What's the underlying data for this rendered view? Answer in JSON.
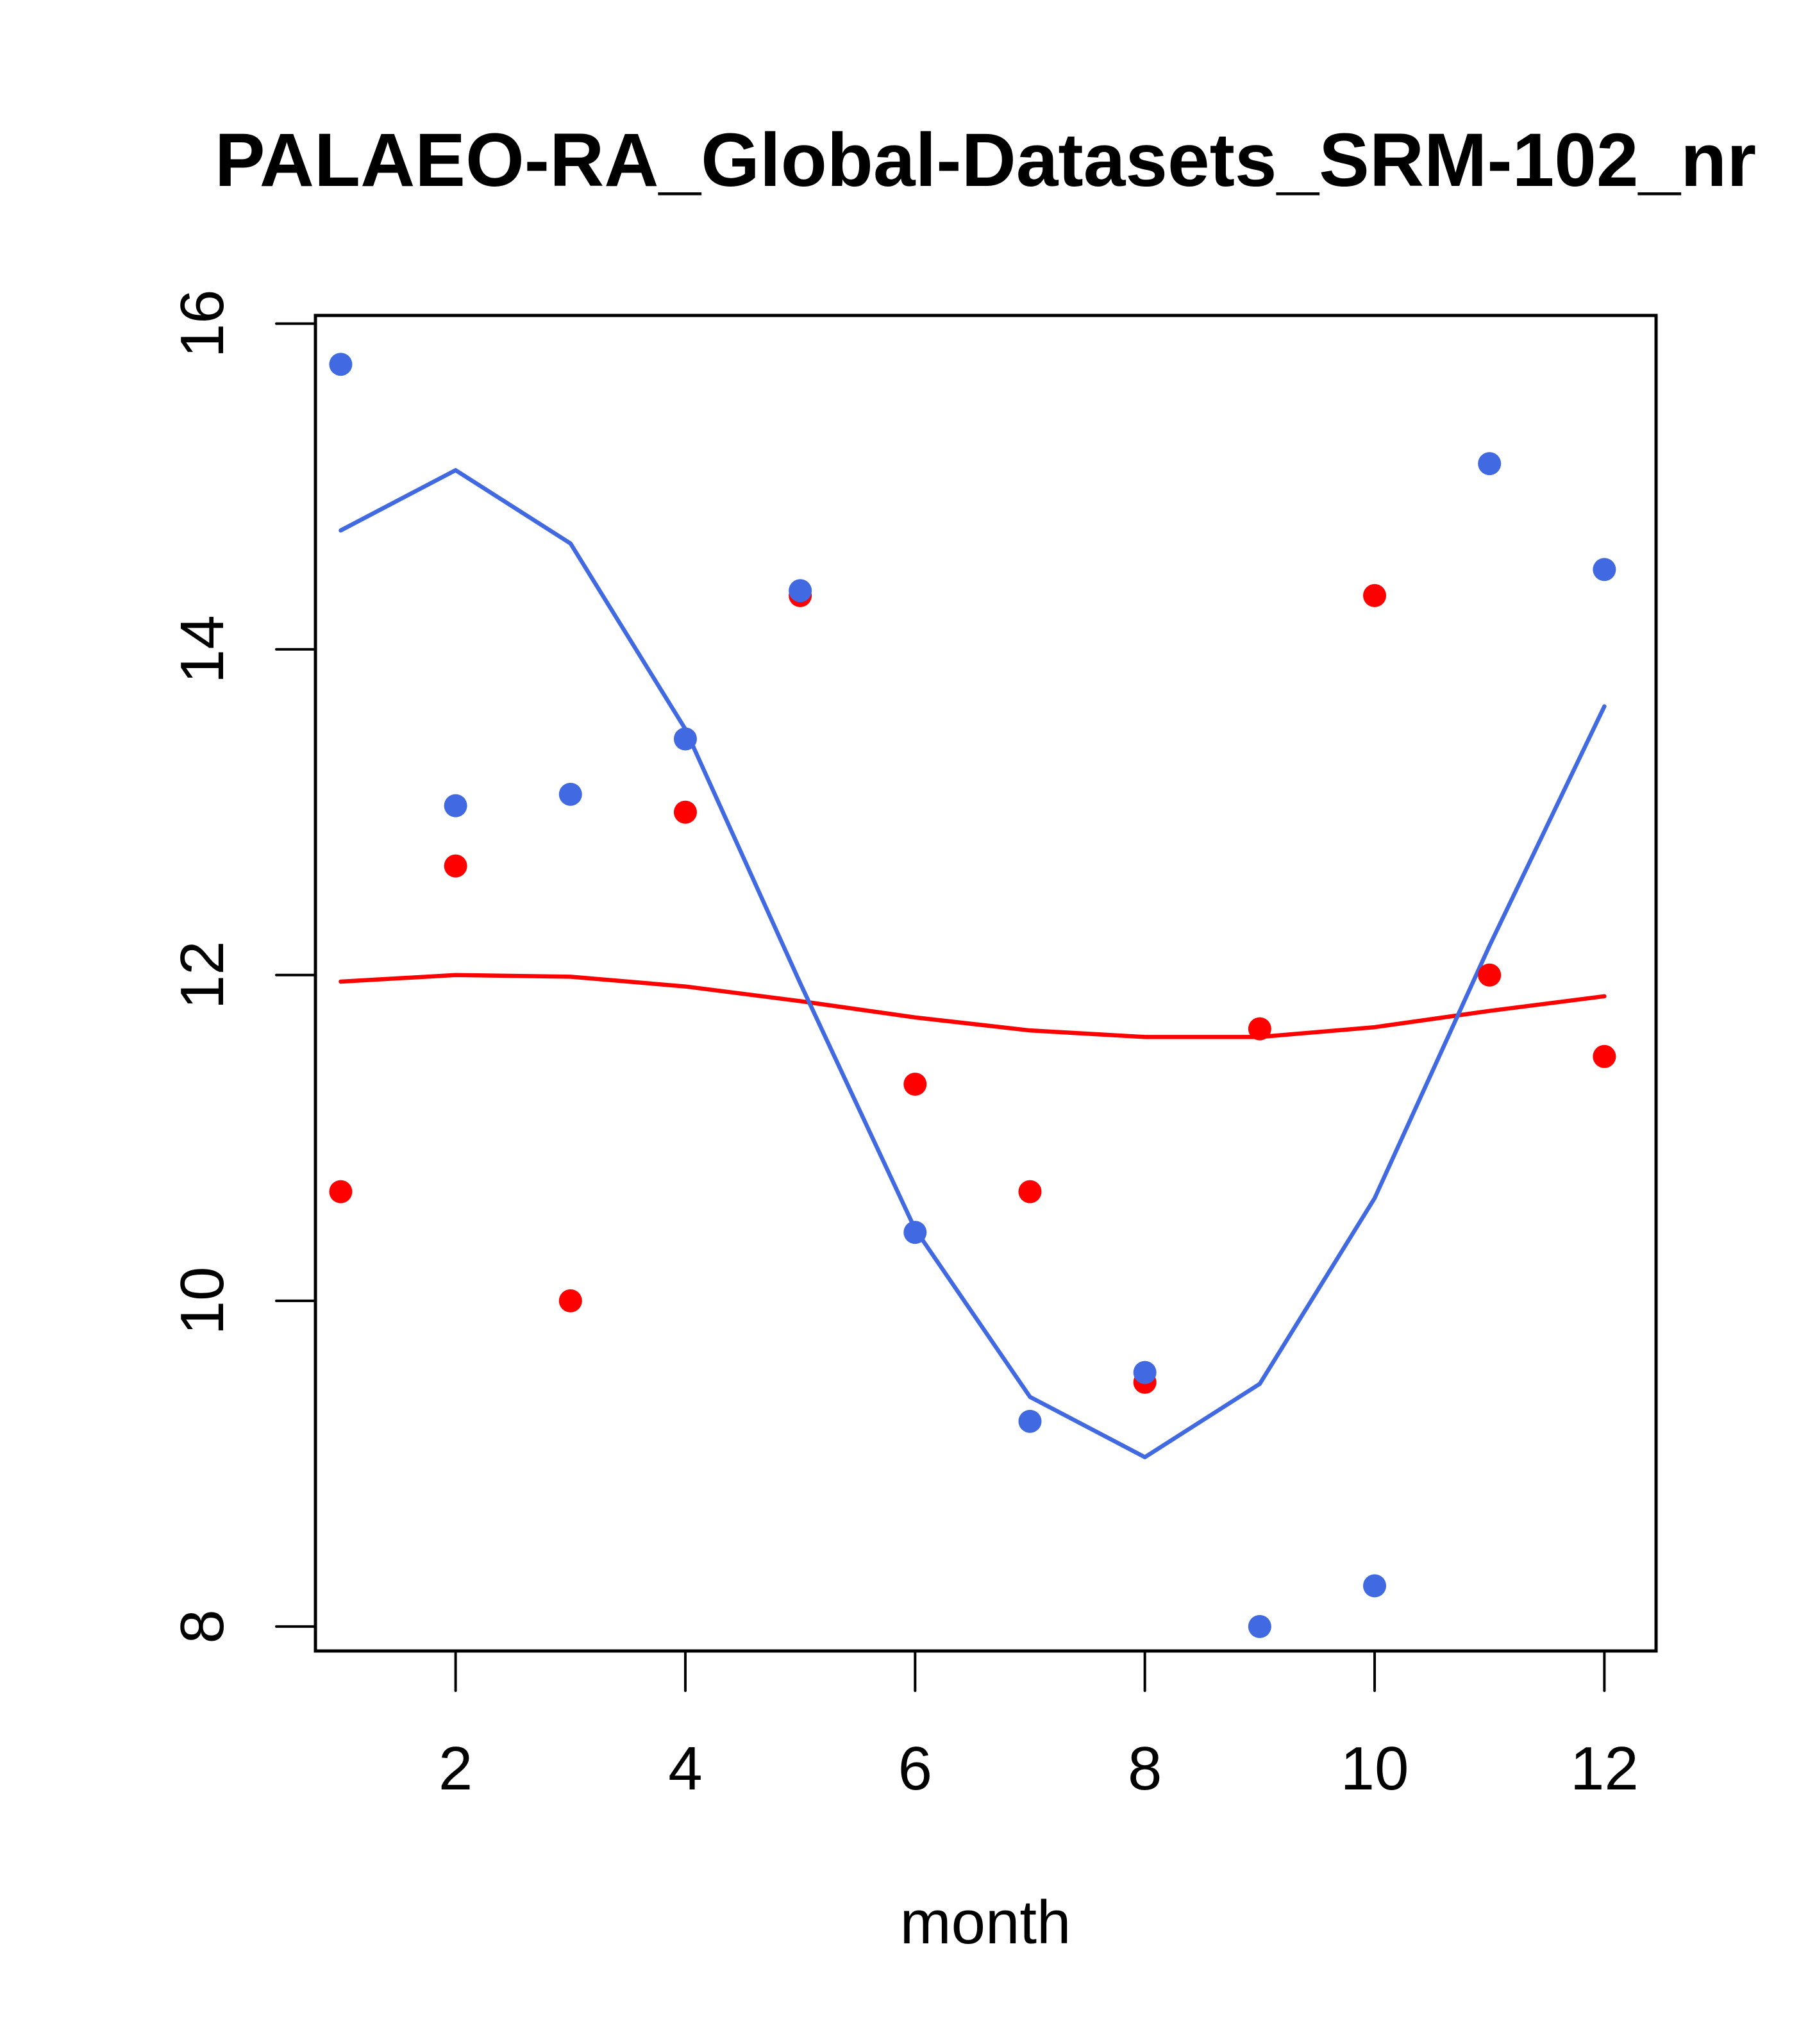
{
  "chart_data": {
    "type": "scatter",
    "title": "PALAEO-RA_Global-Datasets_SRM-102_nr",
    "xlabel": "month",
    "ylabel": "",
    "xlim": [
      0.78,
      12.45
    ],
    "ylim": [
      7.85,
      16.05
    ],
    "x_ticks": [
      2,
      4,
      6,
      8,
      10,
      12
    ],
    "y_ticks": [
      8,
      10,
      12,
      14,
      16
    ],
    "x_tick_labels": [
      "2",
      "4",
      "6",
      "8",
      "10",
      "12"
    ],
    "y_tick_labels": [
      "8",
      "10",
      "12",
      "14",
      "16"
    ],
    "grid": false,
    "legend": null,
    "x": [
      1,
      2,
      3,
      4,
      5,
      6,
      7,
      8,
      9,
      10,
      11,
      12
    ],
    "series": [
      {
        "name": "red points",
        "kind": "points",
        "color": "#ff0000",
        "values": [
          10.67,
          12.67,
          10.0,
          13.0,
          14.33,
          11.33,
          10.67,
          9.5,
          11.67,
          14.33,
          12.0,
          11.5
        ]
      },
      {
        "name": "blue points",
        "kind": "points",
        "color": "#4169e1",
        "values": [
          15.75,
          13.04,
          13.11,
          13.45,
          14.36,
          10.42,
          9.26,
          9.56,
          8.0,
          8.25,
          15.14,
          14.49
        ]
      },
      {
        "name": "red line",
        "kind": "line",
        "color": "#ff0000",
        "values": [
          11.96,
          12.0,
          11.99,
          11.93,
          11.84,
          11.74,
          11.66,
          11.62,
          11.62,
          11.68,
          11.78,
          11.87
        ]
      },
      {
        "name": "blue line",
        "kind": "line",
        "color": "#4169e1",
        "values": [
          14.73,
          15.1,
          14.65,
          13.51,
          11.95,
          10.44,
          9.41,
          9.04,
          9.49,
          10.63,
          12.18,
          13.65
        ]
      }
    ]
  }
}
